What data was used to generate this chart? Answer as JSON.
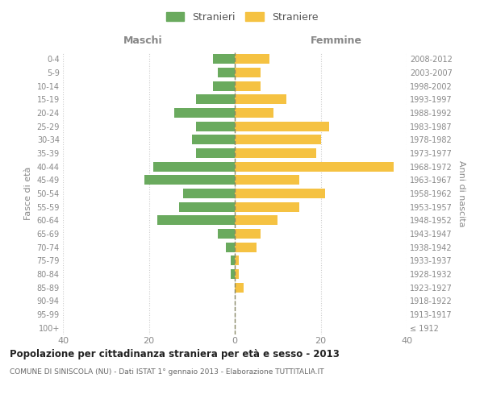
{
  "age_groups": [
    "100+",
    "95-99",
    "90-94",
    "85-89",
    "80-84",
    "75-79",
    "70-74",
    "65-69",
    "60-64",
    "55-59",
    "50-54",
    "45-49",
    "40-44",
    "35-39",
    "30-34",
    "25-29",
    "20-24",
    "15-19",
    "10-14",
    "5-9",
    "0-4"
  ],
  "birth_years": [
    "≤ 1912",
    "1913-1917",
    "1918-1922",
    "1923-1927",
    "1928-1932",
    "1933-1937",
    "1938-1942",
    "1943-1947",
    "1948-1952",
    "1953-1957",
    "1958-1962",
    "1963-1967",
    "1968-1972",
    "1973-1977",
    "1978-1982",
    "1983-1987",
    "1988-1992",
    "1993-1997",
    "1998-2002",
    "2003-2007",
    "2008-2012"
  ],
  "maschi": [
    0,
    0,
    0,
    0,
    1,
    1,
    2,
    4,
    18,
    13,
    12,
    21,
    19,
    9,
    10,
    9,
    14,
    9,
    5,
    4,
    5
  ],
  "femmine": [
    0,
    0,
    0,
    2,
    1,
    1,
    5,
    6,
    10,
    15,
    21,
    15,
    37,
    19,
    20,
    22,
    9,
    12,
    6,
    6,
    8
  ],
  "color_maschi": "#6aaa5e",
  "color_femmine": "#f5c242",
  "title_main": "Popolazione per cittadinanza straniera per età e sesso - 2013",
  "title_sub": "COMUNE DI SINISCOLA (NU) - Dati ISTAT 1° gennaio 2013 - Elaborazione TUTTITALIA.IT",
  "label_maschi": "Stranieri",
  "label_femmine": "Straniere",
  "label_fasce": "Fasce di età",
  "label_anni": "Anni di nascita",
  "label_maschi_header": "Maschi",
  "label_femmine_header": "Femmine",
  "xlim": 40,
  "background_color": "#ffffff",
  "grid_color": "#cccccc"
}
